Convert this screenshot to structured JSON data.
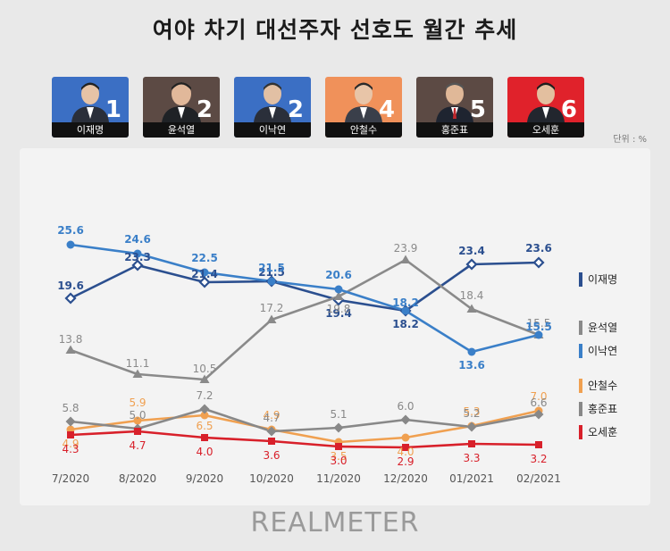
{
  "title": "여야 차기 대선주자 선호도 월간 추세",
  "unit_label": "단위 : %",
  "brand": "REALMETER",
  "candidates": [
    {
      "name": "이재명",
      "rank": "1",
      "bg": "#3b6fc4"
    },
    {
      "name": "윤석열",
      "rank": "2",
      "bg": "#5c4a44"
    },
    {
      "name": "이낙연",
      "rank": "2",
      "bg": "#3b6fc4"
    },
    {
      "name": "안철수",
      "rank": "4",
      "bg": "#f0915a"
    },
    {
      "name": "홍준표",
      "rank": "5",
      "bg": "#5c4a44"
    },
    {
      "name": "오세훈",
      "rank": "6",
      "bg": "#e0222b"
    }
  ],
  "chart_data": {
    "type": "line",
    "categories": [
      "7/2020",
      "8/2020",
      "9/2020",
      "10/2020",
      "11/2020",
      "12/2020",
      "01/2021",
      "02/2021"
    ],
    "ylim": [
      0,
      30
    ],
    "grid": false,
    "legend_position": "right",
    "series": [
      {
        "name": "이재명",
        "color": "#2b4f8f",
        "marker": "diamond-open",
        "values": [
          19.6,
          23.3,
          21.4,
          21.5,
          19.4,
          18.2,
          23.4,
          23.6
        ],
        "labels": [
          "19.6",
          "23.3",
          "21.4",
          "21.5",
          "19.4",
          "18.2",
          "23.4",
          "23.6"
        ]
      },
      {
        "name": "윤석열",
        "color": "#8a8a8a",
        "marker": "triangle",
        "values": [
          13.8,
          11.1,
          10.5,
          17.2,
          19.8,
          23.9,
          18.4,
          15.5
        ],
        "labels": [
          "13.8",
          "11.1",
          "10.5",
          "17.2",
          "19.8",
          "23.9",
          "18.4",
          "15.5"
        ]
      },
      {
        "name": "이낙연",
        "color": "#3a7fc8",
        "marker": "circle",
        "values": [
          25.6,
          24.6,
          22.5,
          21.5,
          20.6,
          18.2,
          13.6,
          15.5
        ],
        "labels": [
          "25.6",
          "24.6",
          "22.5",
          "21.5",
          "20.6",
          "18.2",
          "13.6",
          "15.5"
        ]
      },
      {
        "name": "안철수",
        "color": "#f0a050",
        "marker": "circle",
        "values": [
          4.9,
          5.9,
          6.5,
          4.9,
          3.5,
          4.0,
          5.3,
          7.0
        ],
        "labels": [
          "4.9",
          "5.9",
          "6.5",
          "4.9",
          "3.5",
          "4.0",
          "5.3",
          "7.0"
        ]
      },
      {
        "name": "홍준표",
        "color": "#888888",
        "marker": "diamond",
        "values": [
          5.8,
          5.0,
          7.2,
          4.7,
          5.1,
          6.0,
          5.2,
          6.6
        ],
        "labels": [
          "5.8",
          "5.0",
          "7.2",
          "4.7",
          "5.1",
          "6.0",
          "5.2",
          "6.6"
        ]
      },
      {
        "name": "오세훈",
        "color": "#d8202a",
        "marker": "square",
        "values": [
          4.3,
          4.7,
          4.0,
          3.6,
          3.0,
          2.9,
          3.3,
          3.2
        ],
        "labels": [
          "4.3",
          "4.7",
          "4.0",
          "3.6",
          "3.0",
          "2.9",
          "3.3",
          "3.2"
        ]
      }
    ]
  }
}
